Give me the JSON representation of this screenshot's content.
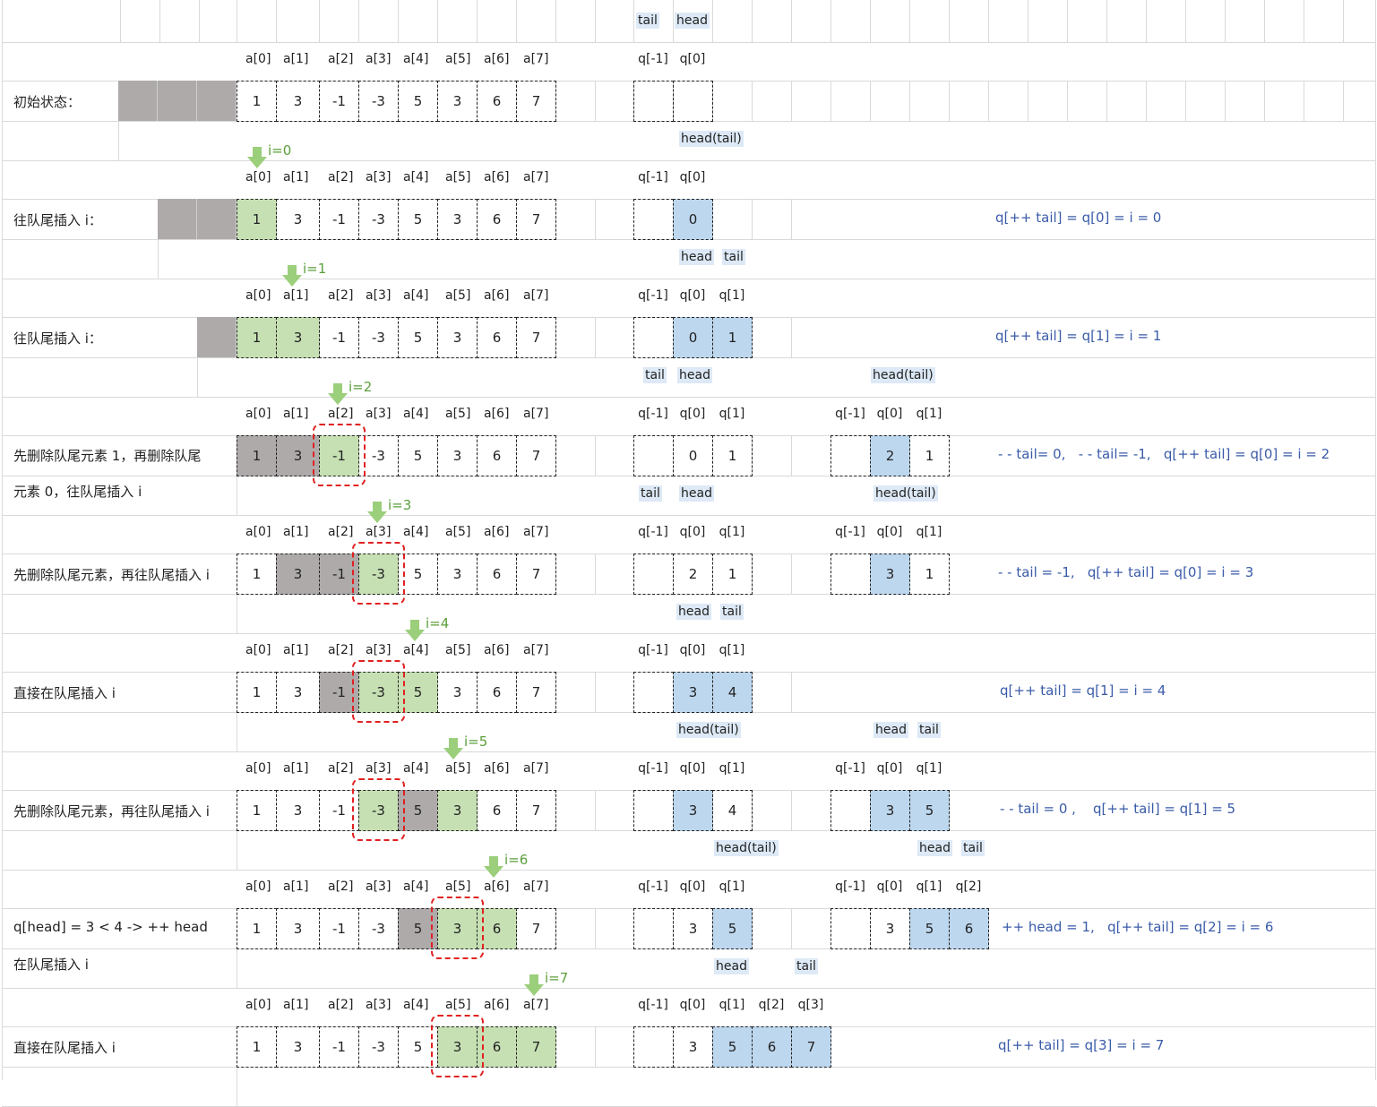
{
  "top_pointers": [
    "tail",
    "head"
  ],
  "array_headers": [
    "a[0]",
    "a[1]",
    "a[2]",
    "a[3]",
    "a[4]",
    "a[5]",
    "a[6]",
    "a[7]"
  ],
  "array_values": [
    "1",
    "3",
    "-1",
    "-3",
    "5",
    "3",
    "6",
    "7"
  ],
  "rows": [
    {
      "label": [
        "初始状态："
      ],
      "pre_blocks": 3,
      "i_label": "",
      "array_fill": [
        "",
        "",
        "",
        "",
        "",
        "",
        "",
        ""
      ],
      "red_box": null,
      "queues": [
        {
          "headers": [
            "q[-1]",
            "q[0]"
          ],
          "values": [
            "",
            ""
          ],
          "fill": [
            "",
            ""
          ],
          "pointers": [
            "head(tail)"
          ]
        }
      ],
      "formula": ""
    },
    {
      "label": [
        "往队尾插入 i："
      ],
      "pre_blocks": 2,
      "i_label": "i=0",
      "array_fill": [
        "green",
        "",
        "",
        "",
        "",
        "",
        "",
        ""
      ],
      "red_box": null,
      "queues": [
        {
          "headers": [
            "q[-1]",
            "q[0]"
          ],
          "values": [
            "",
            "0"
          ],
          "fill": [
            "",
            "blue"
          ],
          "pointers": [
            "head",
            "tail"
          ]
        }
      ],
      "formula": "q[++ tail] = q[0] = i = 0"
    },
    {
      "label": [
        "往队尾插入 i："
      ],
      "pre_blocks": 1,
      "i_label": "i=1",
      "array_fill": [
        "green",
        "green",
        "",
        "",
        "",
        "",
        "",
        ""
      ],
      "red_box": null,
      "queues": [
        {
          "headers": [
            "q[-1]",
            "q[0]",
            "q[1]"
          ],
          "values": [
            "",
            "0",
            "1"
          ],
          "fill": [
            "",
            "blue",
            "blue"
          ],
          "pointers": [
            "tail",
            "head",
            "head(tail)"
          ]
        }
      ],
      "formula": "q[++ tail] = q[1] = i = 1"
    },
    {
      "label": [
        "先删除队尾元素 1，再删除队尾",
        "元素 0，往队尾插入 i"
      ],
      "pre_blocks": 0,
      "i_label": "i=2",
      "array_fill": [
        "gray",
        "gray",
        "green",
        "",
        "",
        "",
        "",
        ""
      ],
      "red_box": 2,
      "queues": [
        {
          "headers": [
            "q[-1]",
            "q[0]",
            "q[1]"
          ],
          "values": [
            "",
            "0",
            "1"
          ],
          "fill": [
            "",
            "",
            ""
          ],
          "pointers": [
            "tail",
            "head"
          ]
        },
        {
          "headers": [
            "q[-1]",
            "q[0]",
            "q[1]"
          ],
          "values": [
            "",
            "2",
            "1"
          ],
          "fill": [
            "",
            "blue",
            ""
          ],
          "pointers": [
            "head(tail)"
          ]
        }
      ],
      "formula": "- - tail= 0,   - - tail= -1,   q[++ tail] = q[0] = i = 2"
    },
    {
      "label": [
        "先删除队尾元素，再往队尾插入 i"
      ],
      "pre_blocks": 0,
      "i_label": "i=3",
      "array_fill": [
        "",
        "gray",
        "gray",
        "green",
        "",
        "",
        "",
        ""
      ],
      "red_box": 3,
      "queues": [
        {
          "headers": [
            "q[-1]",
            "q[0]",
            "q[1]"
          ],
          "values": [
            "",
            "2",
            "1"
          ],
          "fill": [
            "",
            "",
            ""
          ],
          "pointers": [
            "head",
            "tail"
          ]
        },
        {
          "headers": [
            "q[-1]",
            "q[0]",
            "q[1]"
          ],
          "values": [
            "",
            "3",
            "1"
          ],
          "fill": [
            "",
            "blue",
            ""
          ],
          "pointers": []
        }
      ],
      "formula": "- - tail = -1,   q[++ tail] = q[0] = i = 3"
    },
    {
      "label": [
        "直接在队尾插入 i"
      ],
      "pre_blocks": 0,
      "i_label": "i=4",
      "array_fill": [
        "",
        "",
        "gray",
        "green",
        "green",
        "",
        "",
        ""
      ],
      "red_box": 3,
      "queues": [
        {
          "headers": [
            "q[-1]",
            "q[0]",
            "q[1]"
          ],
          "values": [
            "",
            "3",
            "4"
          ],
          "fill": [
            "",
            "blue",
            "blue"
          ],
          "pointers": [
            "head(tail)",
            "head",
            "tail"
          ]
        }
      ],
      "formula": "q[++ tail] = q[1] = i = 4"
    },
    {
      "label": [
        "先删除队尾元素，再往队尾插入 i"
      ],
      "pre_blocks": 0,
      "i_label": "i=5",
      "array_fill": [
        "",
        "",
        "",
        "green",
        "gray",
        "green",
        "",
        ""
      ],
      "red_box": 3,
      "queues": [
        {
          "headers": [
            "q[-1]",
            "q[0]",
            "q[1]"
          ],
          "values": [
            "",
            "3",
            "4"
          ],
          "fill": [
            "",
            "blue",
            ""
          ],
          "pointers": [
            "head(tail)"
          ]
        },
        {
          "headers": [
            "q[-1]",
            "q[0]",
            "q[1]"
          ],
          "values": [
            "",
            "3",
            "5"
          ],
          "fill": [
            "",
            "blue",
            "blue"
          ],
          "pointers": [
            "head",
            "tail"
          ]
        }
      ],
      "formula": "- - tail = 0 ,    q[++ tail] = q[1] = 5"
    },
    {
      "label": [
        "q[head] = 3 < 4 -> ++ head",
        "在队尾插入 i"
      ],
      "pre_blocks": 0,
      "i_label": "i=6",
      "array_fill": [
        "",
        "",
        "",
        "",
        "gray",
        "green",
        "green",
        ""
      ],
      "red_box": 5,
      "queues": [
        {
          "headers": [
            "q[-1]",
            "q[0]",
            "q[1]"
          ],
          "values": [
            "",
            "3",
            "5"
          ],
          "fill": [
            "",
            "",
            "blue"
          ],
          "pointers": [
            "head",
            "tail"
          ]
        },
        {
          "headers": [
            "q[-1]",
            "q[0]",
            "q[1]",
            "q[2]"
          ],
          "values": [
            "",
            "3",
            "5",
            "6"
          ],
          "fill": [
            "",
            "",
            "blue",
            "blue"
          ],
          "pointers": []
        }
      ],
      "formula": "++ head = 1,   q[++ tail] = q[2] = i = 6"
    },
    {
      "label": [
        "直接在队尾插入 i"
      ],
      "pre_blocks": 0,
      "i_label": "i=7",
      "array_fill": [
        "",
        "",
        "",
        "",
        "",
        "green",
        "green",
        "green"
      ],
      "red_box": 5,
      "queues": [
        {
          "headers": [
            "q[-1]",
            "q[0]",
            "q[1]",
            "q[2]",
            "q[3]"
          ],
          "values": [
            "",
            "3",
            "5",
            "6",
            "7"
          ],
          "fill": [
            "",
            "",
            "blue",
            "blue",
            "blue"
          ],
          "pointers": []
        }
      ],
      "formula": "q[++ tail] = q[3] = i = 7"
    }
  ],
  "colors": {
    "green_fill": "#c6e0b4",
    "blue_fill": "#bdd7ee",
    "gray_fill": "#aeaaaa",
    "formula_text": "#3a5ba8",
    "i_label_text": "#5b9f3a",
    "red_highlight": "#e02020",
    "arrow": "#9bcf7b"
  }
}
